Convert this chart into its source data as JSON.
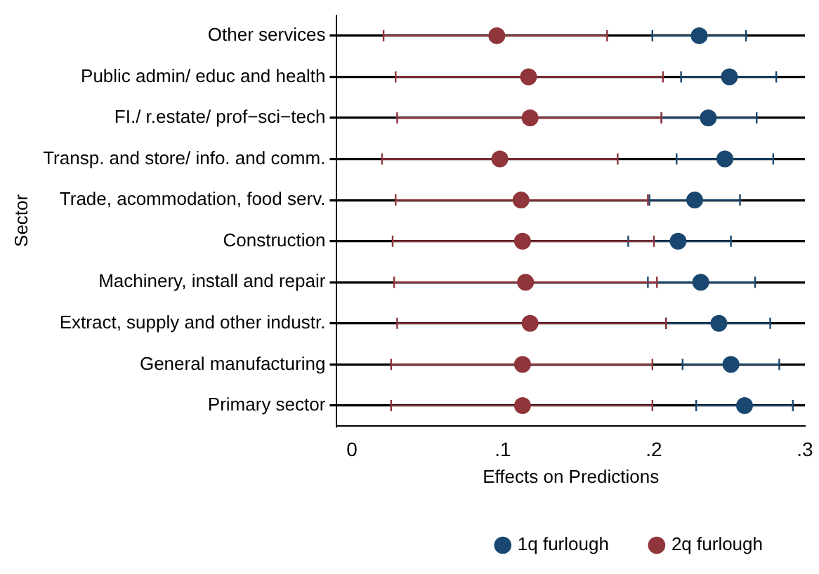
{
  "chart_data": {
    "type": "scatter",
    "orientation": "horizontal",
    "xlabel": "Effects on Predictions",
    "ylabel": "Sector",
    "categories": [
      "Other services",
      "Public admin/ educ and health",
      "FI./ r.estate/ prof−sci−tech",
      "Transp. and store/ info. and comm.",
      "Trade, acommodation, food serv.",
      "Construction",
      "Machinery, install and repair",
      "Extract, supply and other industr.",
      "General manufacturing",
      "Primary sector"
    ],
    "series": [
      {
        "name": "1q furlough",
        "color": "#1a476f",
        "values": [
          0.23,
          0.25,
          0.236,
          0.247,
          0.227,
          0.216,
          0.231,
          0.243,
          0.251,
          0.26
        ],
        "errors": [
          [
            0.199,
            0.261
          ],
          [
            0.218,
            0.281
          ],
          [
            0.205,
            0.268
          ],
          [
            0.215,
            0.279
          ],
          [
            0.197,
            0.257
          ],
          [
            0.183,
            0.251
          ],
          [
            0.196,
            0.267
          ],
          [
            0.208,
            0.277
          ],
          [
            0.219,
            0.283
          ],
          [
            0.228,
            0.292
          ]
        ]
      },
      {
        "name": "2q furlough",
        "color": "#90353b",
        "values": [
          0.096,
          0.117,
          0.118,
          0.098,
          0.112,
          0.113,
          0.115,
          0.118,
          0.113,
          0.113
        ],
        "errors": [
          [
            0.021,
            0.169
          ],
          [
            0.029,
            0.206
          ],
          [
            0.03,
            0.205
          ],
          [
            0.02,
            0.176
          ],
          [
            0.029,
            0.196
          ],
          [
            0.027,
            0.2
          ],
          [
            0.028,
            0.202
          ],
          [
            0.03,
            0.208
          ],
          [
            0.026,
            0.199
          ],
          [
            0.026,
            0.199
          ]
        ]
      }
    ],
    "xlim": [
      -0.01,
      0.3
    ],
    "xticks": [
      {
        "value": 0,
        "label": "0"
      },
      {
        "value": 0.1,
        "label": ".1"
      },
      {
        "value": 0.2,
        "label": ".2"
      },
      {
        "value": 0.3,
        "label": ".3"
      }
    ],
    "grid": "y",
    "legend": "bottom",
    "marker": "circle"
  }
}
